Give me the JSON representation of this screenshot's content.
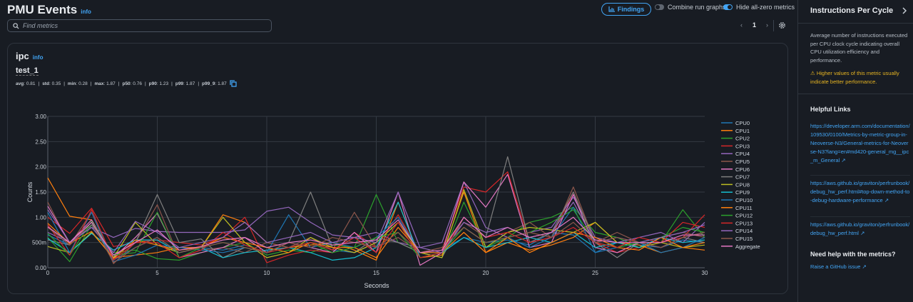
{
  "header": {
    "title": "PMU Events",
    "info": "info",
    "search_placeholder": "Find metrics",
    "findings_label": "Findings",
    "combine_label": "Combine run graphs",
    "combine_on": false,
    "hide_zero_label": "Hide all-zero metrics",
    "hide_zero_on": true,
    "page": "1"
  },
  "card": {
    "metric": "ipc",
    "info": "info",
    "run": "test_1",
    "stats": [
      {
        "k": "avg",
        "v": "0.81"
      },
      {
        "k": "std",
        "v": "0.35"
      },
      {
        "k": "min",
        "v": "0.28"
      },
      {
        "k": "max",
        "v": "1.87"
      },
      {
        "k": "p50",
        "v": "0.76"
      },
      {
        "k": "p90",
        "v": "1.23"
      },
      {
        "k": "p99",
        "v": "1.87"
      },
      {
        "k": "p99_9",
        "v": "1.87"
      }
    ]
  },
  "side": {
    "title": "Instructions Per Cycle",
    "description": "Average number of instructions executed per CPU clock cycle indicating overall CPU utilization efficiency and performance.",
    "warning": "Higher values of this metric usually indicate better performance.",
    "links_title": "Helpful Links",
    "links": [
      "https://developer.arm.com/documentation/109530/0100/Metrics-by-metric-group-in-Neoverse-N3/General-metrics-for-Neoverse-N3?lang=en#md420-general_mg__ipc_m_General",
      "https://aws.github.io/graviton/perfrunbook/debug_hw_perf.html#top-down-method-to-debug-hardware-performance",
      "https://aws.github.io/graviton/perfrunbook/debug_hw_perf.html"
    ],
    "help_title": "Need help with the metrics?",
    "help_link": "Raise a GitHub issue"
  },
  "chart_data": {
    "type": "line",
    "xlabel": "Seconds",
    "ylabel": "Counts",
    "xlim": [
      0,
      30
    ],
    "ylim": [
      0,
      3
    ],
    "xticks": [
      "0",
      "5",
      "10",
      "15",
      "20",
      "25",
      "30"
    ],
    "yticks": [
      "0.00",
      "500m",
      "1.00",
      "1.50",
      "2.00",
      "2.50",
      "3.00"
    ],
    "legend": "right",
    "x": [
      0,
      1,
      2,
      3,
      4,
      5,
      6,
      7,
      8,
      9,
      10,
      11,
      12,
      13,
      14,
      15,
      16,
      17,
      18,
      19,
      20,
      21,
      22,
      23,
      24,
      25,
      26,
      27,
      28,
      29,
      30
    ],
    "series": [
      {
        "name": "CPU0",
        "color": "#1f77b4",
        "values": [
          0.65,
          0.45,
          0.9,
          0.15,
          0.4,
          0.6,
          0.3,
          0.4,
          0.35,
          0.45,
          0.3,
          0.4,
          0.5,
          0.35,
          0.3,
          0.5,
          0.9,
          0.3,
          0.35,
          0.6,
          0.5,
          0.55,
          0.45,
          0.7,
          0.65,
          0.3,
          0.5,
          0.45,
          0.4,
          0.55,
          0.5
        ]
      },
      {
        "name": "CPU1",
        "color": "#ff7f0e",
        "values": [
          1.78,
          1.02,
          0.95,
          0.2,
          0.25,
          0.3,
          0.4,
          0.4,
          1.05,
          0.9,
          0.5,
          0.4,
          0.45,
          0.5,
          0.35,
          0.15,
          1.3,
          0.2,
          0.25,
          1.5,
          0.3,
          0.5,
          0.35,
          0.45,
          0.6,
          0.9,
          0.5,
          0.45,
          0.3,
          0.4,
          0.35
        ]
      },
      {
        "name": "CPU2",
        "color": "#2ca02c",
        "values": [
          0.6,
          0.12,
          0.85,
          0.3,
          0.35,
          0.18,
          0.15,
          0.3,
          0.4,
          0.5,
          0.25,
          0.35,
          0.3,
          0.45,
          0.4,
          1.45,
          0.5,
          0.3,
          0.2,
          1.3,
          0.4,
          0.6,
          0.9,
          1.0,
          1.2,
          0.7,
          0.6,
          0.4,
          0.5,
          1.15,
          0.6
        ]
      },
      {
        "name": "CPU3",
        "color": "#d62728",
        "values": [
          1.0,
          0.68,
          1.18,
          0.42,
          0.5,
          0.55,
          0.5,
          0.45,
          0.6,
          1.0,
          0.1,
          0.25,
          0.35,
          0.3,
          0.7,
          0.4,
          1.05,
          0.3,
          0.35,
          1.6,
          1.5,
          1.9,
          0.5,
          0.6,
          1.5,
          0.5,
          0.3,
          0.4,
          0.5,
          0.6,
          1.05
        ]
      },
      {
        "name": "CPU4",
        "color": "#9467bd",
        "values": [
          0.7,
          0.5,
          0.8,
          0.6,
          0.78,
          0.72,
          0.7,
          0.7,
          0.7,
          0.75,
          1.12,
          1.2,
          0.9,
          0.65,
          0.6,
          0.7,
          0.5,
          0.4,
          0.5,
          1.7,
          0.8,
          0.6,
          0.7,
          0.8,
          1.4,
          0.6,
          0.5,
          0.6,
          0.7,
          0.5,
          0.9
        ]
      },
      {
        "name": "CPU5",
        "color": "#8c564b",
        "values": [
          1.3,
          0.45,
          1.1,
          0.08,
          0.5,
          1.25,
          0.2,
          0.35,
          0.4,
          0.3,
          0.5,
          0.4,
          0.6,
          0.35,
          1.1,
          0.4,
          0.6,
          0.3,
          0.4,
          0.9,
          0.6,
          0.7,
          0.9,
          0.6,
          1.6,
          0.5,
          0.7,
          0.5,
          0.6,
          0.7,
          0.6
        ]
      },
      {
        "name": "CPU6",
        "color": "#e377c2",
        "values": [
          1.22,
          0.5,
          0.95,
          0.2,
          0.6,
          1.08,
          0.2,
          0.3,
          0.4,
          0.6,
          0.3,
          0.5,
          0.4,
          0.3,
          0.7,
          0.3,
          1.5,
          0.05,
          0.3,
          1.7,
          1.2,
          1.85,
          0.4,
          0.5,
          1.45,
          0.4,
          0.3,
          0.5,
          0.4,
          0.6,
          0.7
        ]
      },
      {
        "name": "CPU7",
        "color": "#7f7f7f",
        "values": [
          0.55,
          0.45,
          0.85,
          0.25,
          0.5,
          1.45,
          0.5,
          0.57,
          0.2,
          0.4,
          0.3,
          0.5,
          1.5,
          0.4,
          0.3,
          0.6,
          0.5,
          0.3,
          0.2,
          1.0,
          0.6,
          2.2,
          0.5,
          0.7,
          1.5,
          0.5,
          0.2,
          0.5,
          0.4,
          0.6,
          0.5
        ]
      },
      {
        "name": "CPU8",
        "color": "#bcbd22",
        "values": [
          0.42,
          0.3,
          0.7,
          0.2,
          0.9,
          0.45,
          0.3,
          0.4,
          1.0,
          0.5,
          0.2,
          0.3,
          0.6,
          0.4,
          0.3,
          0.5,
          0.9,
          0.3,
          0.2,
          1.55,
          0.4,
          0.7,
          0.8,
          0.75,
          0.7,
          0.9,
          0.5,
          0.4,
          0.5,
          0.4,
          0.45
        ]
      },
      {
        "name": "CPU9",
        "color": "#17becf",
        "values": [
          0.58,
          0.3,
          0.68,
          0.35,
          0.55,
          0.55,
          0.3,
          0.4,
          0.2,
          0.3,
          0.35,
          0.4,
          0.3,
          0.15,
          0.2,
          0.4,
          1.3,
          0.2,
          0.3,
          0.6,
          0.4,
          0.5,
          0.6,
          0.5,
          0.7,
          0.4,
          0.5,
          0.4,
          0.6,
          0.5,
          0.55
        ]
      },
      {
        "name": "CPU10",
        "color": "#1f77b4",
        "values": [
          1.1,
          0.3,
          1.1,
          0.12,
          0.25,
          0.45,
          0.4,
          0.35,
          0.3,
          0.4,
          0.3,
          1.05,
          0.4,
          0.5,
          0.4,
          0.6,
          1.0,
          0.3,
          0.3,
          0.8,
          0.5,
          0.6,
          0.4,
          0.6,
          1.2,
          0.3,
          0.4,
          0.5,
          0.3,
          0.4,
          0.6
        ]
      },
      {
        "name": "CPU11",
        "color": "#ff7f0e",
        "values": [
          0.88,
          0.48,
          0.72,
          0.18,
          0.55,
          0.45,
          0.35,
          0.4,
          0.6,
          0.5,
          0.4,
          0.3,
          0.5,
          0.4,
          0.4,
          0.2,
          0.8,
          0.3,
          0.3,
          0.7,
          0.3,
          0.6,
          0.3,
          0.5,
          0.7,
          0.6,
          0.4,
          0.35,
          0.6,
          0.4,
          0.5
        ]
      },
      {
        "name": "CPU12",
        "color": "#2ca02c",
        "values": [
          0.68,
          0.25,
          0.92,
          0.25,
          0.3,
          1.1,
          0.2,
          0.4,
          0.5,
          0.4,
          0.3,
          0.4,
          0.5,
          0.3,
          0.4,
          0.6,
          0.7,
          0.2,
          0.3,
          0.8,
          0.5,
          0.6,
          0.7,
          0.9,
          1.15,
          0.5,
          0.4,
          0.5,
          0.6,
          0.8,
          0.7
        ]
      },
      {
        "name": "CPU13",
        "color": "#d62728",
        "values": [
          0.85,
          0.25,
          1.15,
          0.15,
          0.5,
          0.5,
          0.2,
          0.35,
          0.7,
          0.45,
          0.3,
          0.4,
          0.5,
          0.35,
          0.6,
          0.3,
          0.9,
          0.2,
          0.3,
          1.0,
          0.6,
          0.7,
          0.5,
          0.6,
          0.8,
          0.5,
          0.4,
          0.6,
          0.5,
          0.9,
          0.8
        ]
      },
      {
        "name": "CPU14",
        "color": "#9467bd",
        "values": [
          1.15,
          0.5,
          0.8,
          0.3,
          0.92,
          0.7,
          0.4,
          0.5,
          0.6,
          0.9,
          0.5,
          0.6,
          0.7,
          0.5,
          0.6,
          0.5,
          1.5,
          0.4,
          0.3,
          0.9,
          0.7,
          0.8,
          0.6,
          0.7,
          1.3,
          0.5,
          0.6,
          0.5,
          0.6,
          0.7,
          0.85
        ]
      },
      {
        "name": "CPU15",
        "color": "#8c564b",
        "values": [
          0.8,
          0.45,
          0.9,
          0.1,
          0.4,
          0.6,
          0.3,
          0.4,
          0.5,
          0.4,
          0.3,
          0.5,
          0.4,
          0.6,
          0.5,
          0.4,
          0.7,
          0.3,
          0.4,
          0.8,
          0.5,
          0.6,
          0.7,
          0.6,
          0.9,
          0.5,
          0.6,
          0.5,
          0.4,
          0.6,
          0.7
        ]
      },
      {
        "name": "Aggregate",
        "color": "#e377c2",
        "values": [
          0.81,
          0.5,
          0.9,
          0.25,
          0.5,
          0.75,
          0.35,
          0.42,
          0.55,
          0.6,
          0.4,
          0.5,
          0.55,
          0.45,
          0.5,
          0.55,
          0.95,
          0.3,
          0.35,
          1.0,
          0.6,
          0.8,
          0.6,
          0.7,
          1.0,
          0.55,
          0.5,
          0.5,
          0.5,
          0.65,
          0.65
        ]
      }
    ]
  }
}
